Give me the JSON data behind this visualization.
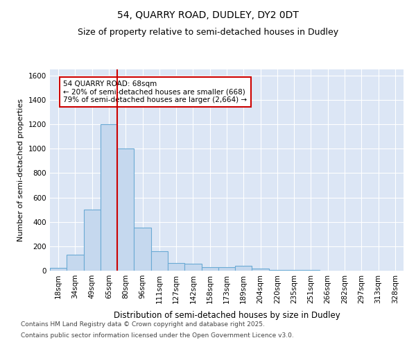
{
  "title1": "54, QUARRY ROAD, DUDLEY, DY2 0DT",
  "title2": "Size of property relative to semi-detached houses in Dudley",
  "xlabel": "Distribution of semi-detached houses by size in Dudley",
  "ylabel": "Number of semi-detached properties",
  "categories": [
    "18sqm",
    "34sqm",
    "49sqm",
    "65sqm",
    "80sqm",
    "96sqm",
    "111sqm",
    "127sqm",
    "142sqm",
    "158sqm",
    "173sqm",
    "189sqm",
    "204sqm",
    "220sqm",
    "235sqm",
    "251sqm",
    "266sqm",
    "282sqm",
    "297sqm",
    "313sqm",
    "328sqm"
  ],
  "values": [
    20,
    130,
    500,
    1200,
    1000,
    350,
    160,
    60,
    55,
    30,
    30,
    40,
    15,
    8,
    5,
    3,
    2,
    1,
    1,
    1,
    1
  ],
  "bar_color": "#c5d8ee",
  "bar_edge_color": "#6aaad4",
  "vline_color": "#cc0000",
  "annotation_text": "54 QUARRY ROAD: 68sqm\n← 20% of semi-detached houses are smaller (668)\n79% of semi-detached houses are larger (2,664) →",
  "annotation_box_color": "#cc0000",
  "background_color": "#dce6f5",
  "ylim": [
    0,
    1650
  ],
  "yticks": [
    0,
    200,
    400,
    600,
    800,
    1000,
    1200,
    1400,
    1600
  ],
  "footer1": "Contains HM Land Registry data © Crown copyright and database right 2025.",
  "footer2": "Contains public sector information licensed under the Open Government Licence v3.0.",
  "title1_fontsize": 10,
  "title2_fontsize": 9,
  "xlabel_fontsize": 8.5,
  "ylabel_fontsize": 8,
  "tick_fontsize": 7.5,
  "annotation_fontsize": 7.5,
  "footer_fontsize": 6.5
}
